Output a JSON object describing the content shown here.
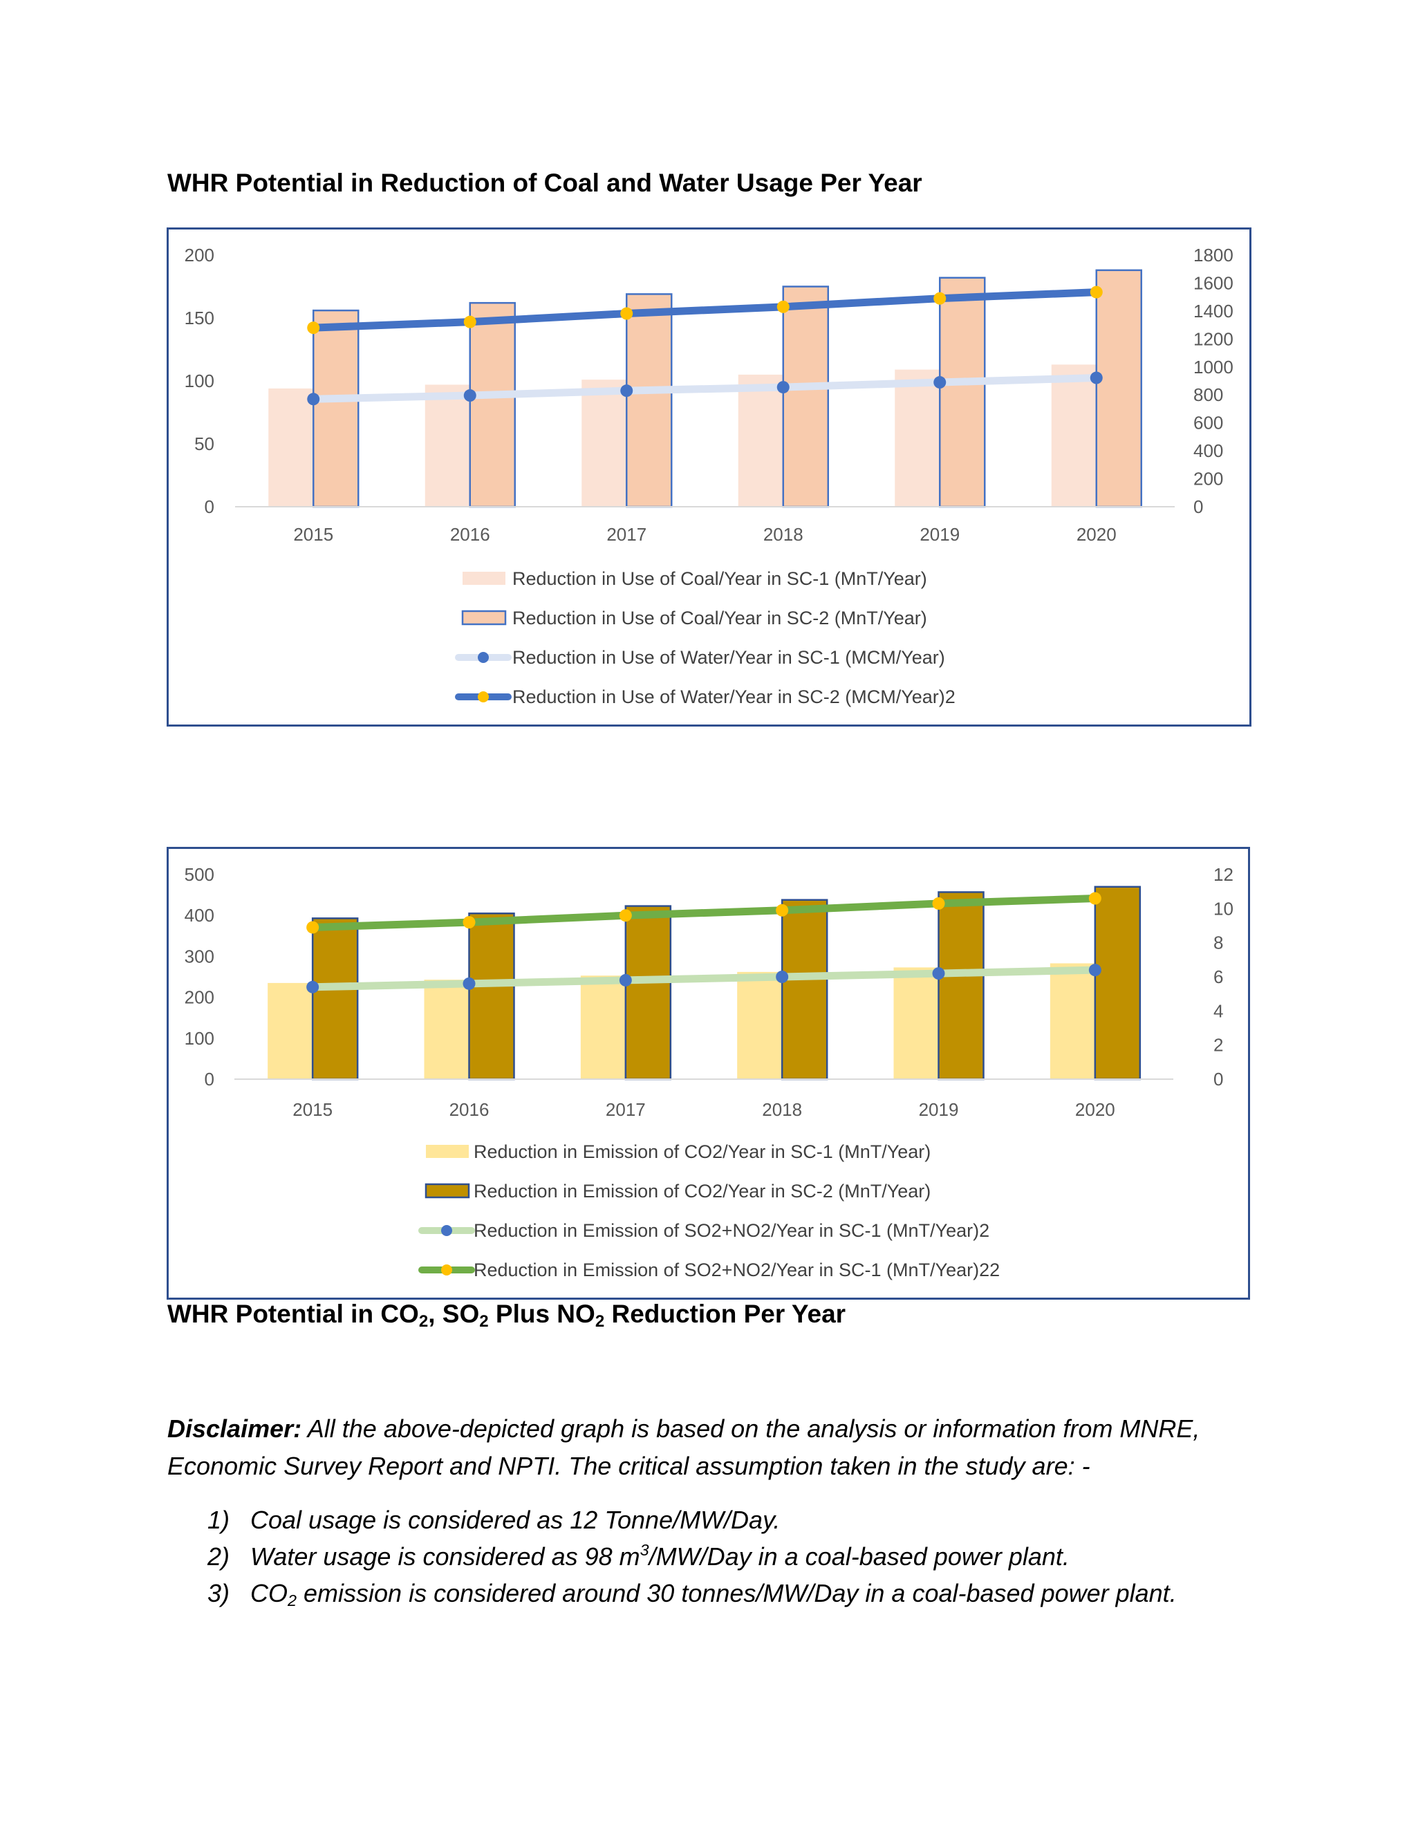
{
  "heading1": "WHR Potential in Reduction of Coal and Water Usage Per Year",
  "heading2": {
    "a": "WHR Potential in CO",
    "sub1": "2",
    "b": ", SO",
    "sub2": "2",
    "c": " Plus NO",
    "sub3": "2",
    "d": " Reduction Per Year"
  },
  "disclaimer": {
    "label": "Disclaimer:",
    "text": " All the above-depicted graph is based on the analysis or information from MNRE, Economic Survey Report and NPTI. The critical assumption taken in the study are: -"
  },
  "notes": [
    {
      "num": "1)",
      "a": "Coal usage is considered as 12 Tonne/MW/Day.",
      "sup": "",
      "b": ""
    },
    {
      "num": "2)",
      "a": "Water usage is considered as 98 m",
      "sup": "3",
      "b": "/MW/Day in a coal-based power plant."
    },
    {
      "num": "3)",
      "a": "CO",
      "sub": "2",
      "b": " emission is considered around 30 tonnes/MW/Day in a coal-based power plant."
    }
  ],
  "chart_data": [
    {
      "type": "bar",
      "title": "",
      "categories": [
        "2015",
        "2016",
        "2017",
        "2018",
        "2019",
        "2020"
      ],
      "ylim": [
        0,
        200
      ],
      "y_ticks": [
        "0",
        "50",
        "100",
        "150",
        "200"
      ],
      "y2lim": [
        0,
        1800
      ],
      "y2_ticks": [
        "0",
        "200",
        "400",
        "600",
        "800",
        "1000",
        "1200",
        "1400",
        "1600",
        "1800"
      ],
      "grid": false,
      "legend_position": "bottom",
      "series": [
        {
          "name": "Reduction in Use of Coal/Year in SC-1 (MnT/Year)",
          "kind": "bar",
          "axis": "left",
          "color": "#fbe2d5",
          "values": [
            94,
            97,
            101,
            105,
            109,
            113
          ]
        },
        {
          "name": "Reduction in Use of Coal/Year in SC-2 (MnT/Year)",
          "kind": "bar",
          "axis": "left",
          "color": "#f8cbad",
          "border": "#4472c4",
          "values": [
            156,
            162,
            169,
            175,
            182,
            188
          ]
        },
        {
          "name": "Reduction in Use of Water/Year in SC-1 (MCM/Year)",
          "kind": "line",
          "axis": "right",
          "color": "#dae3f3",
          "marker": "#4472c4",
          "values": [
            770,
            796,
            830,
            855,
            890,
            922
          ]
        },
        {
          "name": "Reduction in Use of Water/Year in SC-2 (MCM/Year)2",
          "kind": "line",
          "axis": "right",
          "color": "#4472c4",
          "marker": "#ffc000",
          "values": [
            1280,
            1322,
            1382,
            1430,
            1490,
            1535
          ]
        }
      ]
    },
    {
      "type": "bar",
      "title": "",
      "categories": [
        "2015",
        "2016",
        "2017",
        "2018",
        "2019",
        "2020"
      ],
      "ylim": [
        0,
        500
      ],
      "y_ticks": [
        "0",
        "100",
        "200",
        "300",
        "400",
        "500"
      ],
      "y2lim": [
        0,
        12
      ],
      "y2_ticks": [
        "0",
        "2",
        "4",
        "6",
        "8",
        "10",
        "12"
      ],
      "grid": false,
      "legend_position": "bottom",
      "series": [
        {
          "name": "Reduction in Emission of CO2/Year in SC-1 (MnT/Year)",
          "kind": "bar",
          "axis": "left",
          "color": "#ffe699",
          "values": [
            235,
            243,
            253,
            262,
            273,
            283
          ]
        },
        {
          "name": "Reduction in Emission of CO2/Year in SC-2 (MnT/Year)",
          "kind": "bar",
          "axis": "left",
          "color": "#bf9000",
          "border": "#2f4f8f",
          "values": [
            393,
            405,
            423,
            438,
            457,
            470
          ]
        },
        {
          "name": "Reduction in Emission of SO2+NO2/Year in SC-1 (MnT/Year)2",
          "kind": "line",
          "axis": "right",
          "color": "#c5e0b4",
          "marker": "#4472c4",
          "values": [
            5.4,
            5.6,
            5.8,
            6.0,
            6.2,
            6.4
          ]
        },
        {
          "name": "Reduction in Emission of SO2+NO2/Year in SC-1 (MnT/Year)22",
          "kind": "line",
          "axis": "right",
          "color": "#70ad47",
          "marker": "#ffc000",
          "values": [
            8.9,
            9.2,
            9.6,
            9.9,
            10.3,
            10.6
          ]
        }
      ]
    }
  ]
}
